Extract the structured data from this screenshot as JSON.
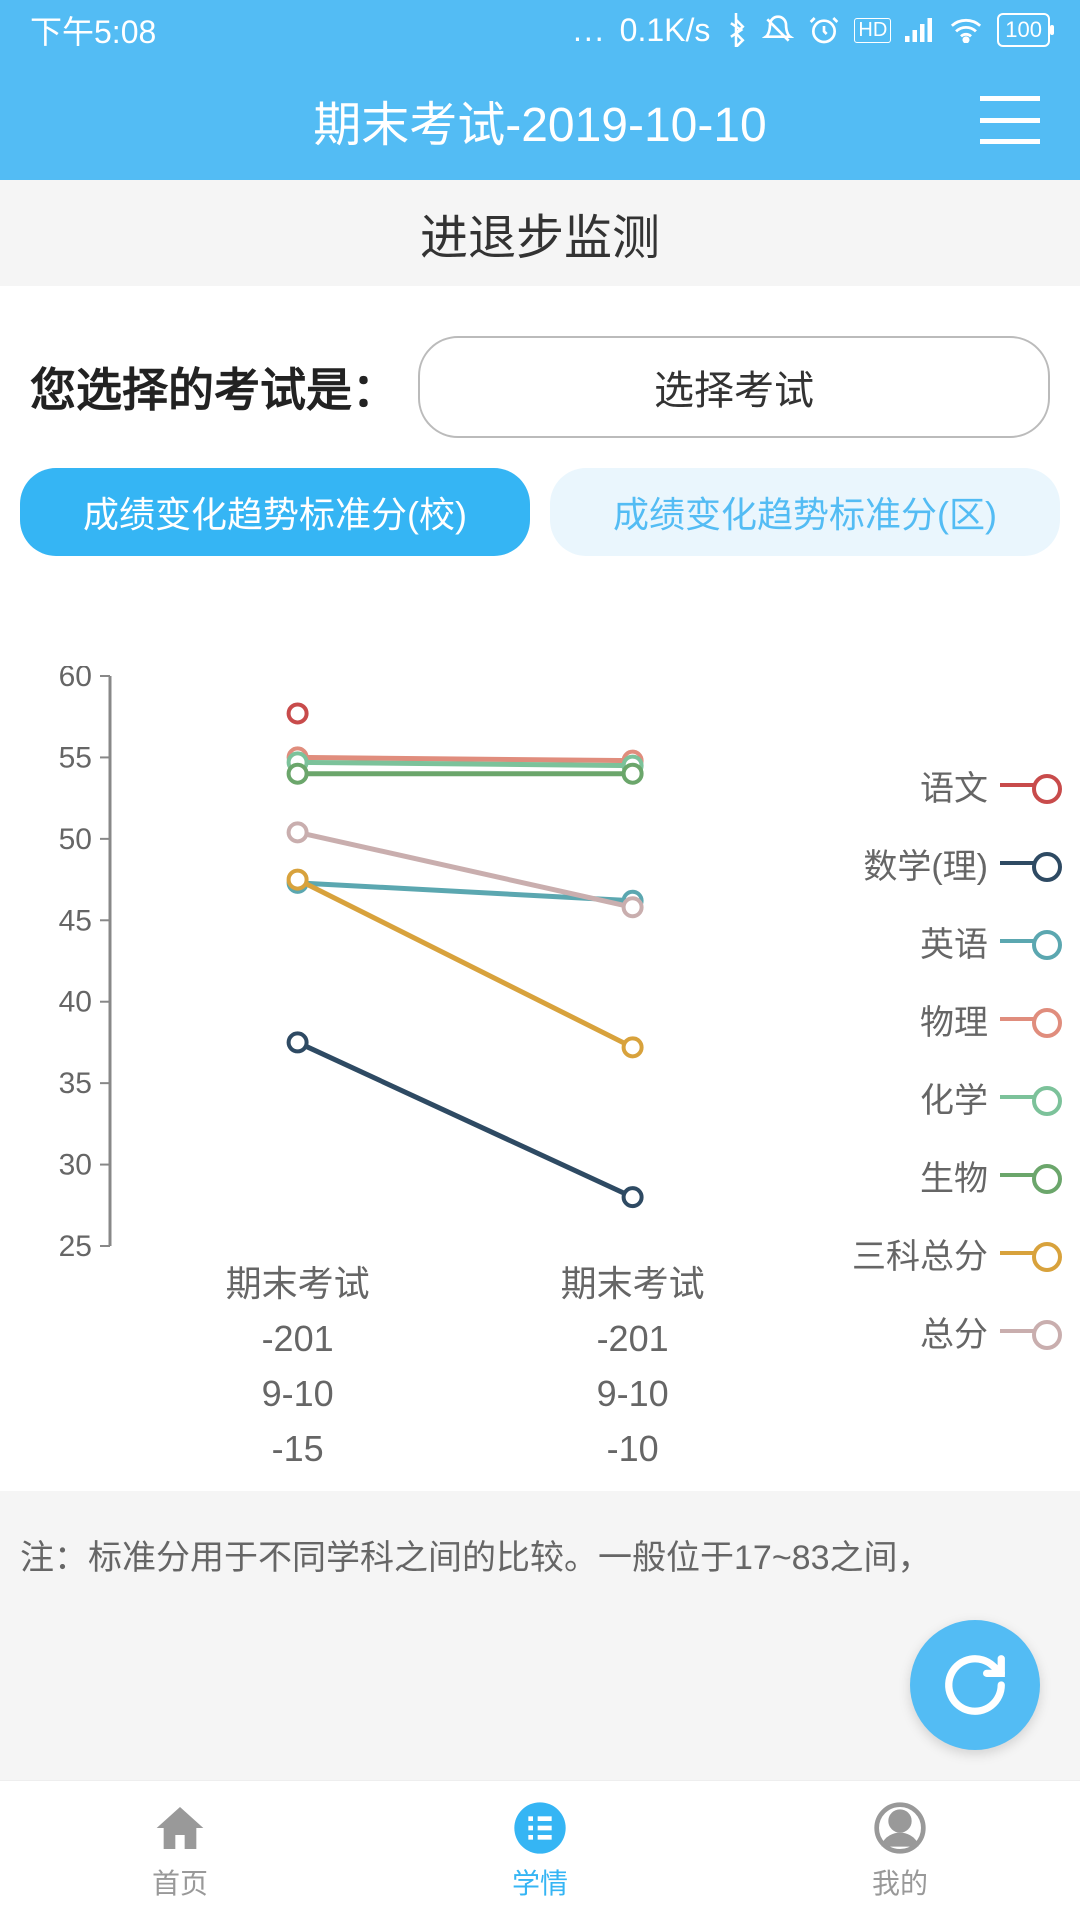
{
  "status": {
    "time": "下午5:08",
    "speed": "0.1K/s",
    "battery": "100"
  },
  "header": {
    "title": "期末考试-2019-10-10"
  },
  "sub_header": "进退步监测",
  "select": {
    "label": "您选择的考试是：",
    "button": "选择考试"
  },
  "tabs": {
    "active": "成绩变化趋势标准分(校)",
    "inactive": "成绩变化趋势标准分(区)"
  },
  "chart": {
    "type": "line",
    "ylim": [
      25,
      60
    ],
    "ytick_step": 5,
    "yticks": [
      "60",
      "55",
      "50",
      "45",
      "40",
      "35",
      "30",
      "25"
    ],
    "xlabels": [
      {
        "l1": "期末考试",
        "l2": "-201",
        "l3": "9-10",
        "l4": "-15"
      },
      {
        "l1": "期末考试",
        "l2": "-201",
        "l3": "9-10",
        "l4": "-10"
      }
    ],
    "series": [
      {
        "name": "语文",
        "color": "#c84b4b",
        "values": [
          57.7,
          null
        ],
        "dot_only": true
      },
      {
        "name": "数学(理)",
        "color": "#2e4a63",
        "values": [
          37.5,
          28
        ]
      },
      {
        "name": "英语",
        "color": "#5ba7b0",
        "values": [
          47.3,
          46.2
        ]
      },
      {
        "name": "物理",
        "color": "#e08d7d",
        "values": [
          55,
          54.8
        ]
      },
      {
        "name": "化学",
        "color": "#7cc29a",
        "values": [
          54.7,
          54.5
        ]
      },
      {
        "name": "生物",
        "color": "#6ba66b",
        "values": [
          54,
          54
        ]
      },
      {
        "name": "三科总分",
        "color": "#d8a23c",
        "values": [
          47.5,
          37.2
        ]
      },
      {
        "name": "总分",
        "color": "#c9aeae",
        "values": [
          50.4,
          45.8
        ]
      }
    ],
    "axis_color": "#888",
    "tick_color": "#888",
    "label_color": "#666",
    "tick_fontsize": 30,
    "xlabel_fontsize": 36
  },
  "note": "注：标准分用于不同学科之间的比较。一般位于17~83之间，",
  "nav": {
    "home": "首页",
    "learn": "学情",
    "mine": "我的"
  }
}
